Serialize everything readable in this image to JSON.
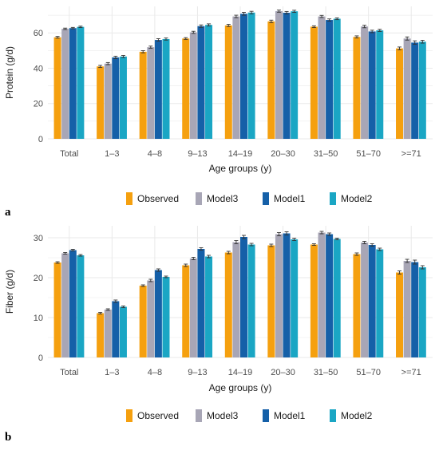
{
  "colors": {
    "Observed": "#f5a00f",
    "Model3": "#a8a6b6",
    "Model1": "#1560a8",
    "Model2": "#1aa6c4",
    "grid": "#e9e9e9",
    "error_bar": "#333333"
  },
  "chart_data": [
    {
      "type": "bar",
      "panel_label": "a",
      "xlabel": "Age groups (y)",
      "ylabel": "Protein (g/d)",
      "ylim": [
        0,
        75
      ],
      "yticks": [
        0,
        20,
        40,
        60
      ],
      "grid": true,
      "legend_position": "bottom",
      "categories": [
        "Total",
        "1–3",
        "4–8",
        "9–13",
        "14–19",
        "20–30",
        "31–50",
        "51–70",
        ">=71"
      ],
      "series": [
        {
          "name": "Observed",
          "values": [
            57.5,
            41.0,
            49.3,
            56.8,
            64.2,
            66.5,
            63.5,
            57.7,
            51.2
          ],
          "errors": [
            0.5,
            0.6,
            0.6,
            0.5,
            0.6,
            0.7,
            0.5,
            0.6,
            0.8
          ]
        },
        {
          "name": "Model3",
          "values": [
            62.3,
            42.6,
            51.9,
            60.3,
            69.3,
            72.3,
            69.3,
            63.6,
            56.8
          ],
          "errors": [
            0.4,
            0.6,
            0.6,
            0.6,
            0.7,
            0.6,
            0.6,
            0.7,
            0.9
          ]
        },
        {
          "name": "Model1",
          "values": [
            62.7,
            46.1,
            56.0,
            63.8,
            70.8,
            71.4,
            67.3,
            60.8,
            54.5
          ],
          "errors": [
            0.4,
            0.7,
            0.7,
            0.7,
            0.8,
            0.7,
            0.6,
            0.7,
            1.0
          ]
        },
        {
          "name": "Model2",
          "values": [
            63.4,
            46.6,
            56.5,
            64.5,
            71.5,
            72.2,
            68.0,
            61.4,
            55.0
          ],
          "errors": [
            0.4,
            0.6,
            0.6,
            0.6,
            0.7,
            0.6,
            0.5,
            0.6,
            0.8
          ]
        }
      ]
    },
    {
      "type": "bar",
      "panel_label": "b",
      "xlabel": "Age groups (y)",
      "ylabel": "Fiber (g/d)",
      "ylim": [
        0,
        33
      ],
      "yticks": [
        0,
        10,
        20,
        30
      ],
      "grid": true,
      "legend_position": "bottom",
      "categories": [
        "Total",
        "1–3",
        "4–8",
        "9–13",
        "14–19",
        "20–30",
        "31–50",
        "51–70",
        ">=71"
      ],
      "series": [
        {
          "name": "Observed",
          "values": [
            23.8,
            11.1,
            18.0,
            23.1,
            26.3,
            28.1,
            28.3,
            25.9,
            21.3
          ],
          "errors": [
            0.2,
            0.2,
            0.2,
            0.3,
            0.3,
            0.3,
            0.2,
            0.3,
            0.4
          ]
        },
        {
          "name": "Model3",
          "values": [
            26.1,
            12.0,
            19.3,
            24.8,
            28.9,
            30.9,
            31.3,
            28.8,
            24.2
          ],
          "errors": [
            0.2,
            0.2,
            0.3,
            0.3,
            0.4,
            0.4,
            0.3,
            0.3,
            0.4
          ]
        },
        {
          "name": "Model1",
          "values": [
            26.9,
            14.1,
            21.9,
            27.2,
            30.2,
            31.1,
            30.9,
            28.2,
            23.9
          ],
          "errors": [
            0.2,
            0.3,
            0.3,
            0.3,
            0.4,
            0.4,
            0.3,
            0.3,
            0.5
          ]
        },
        {
          "name": "Model2",
          "values": [
            25.6,
            12.7,
            20.2,
            25.3,
            28.3,
            29.6,
            29.7,
            27.1,
            22.6
          ],
          "errors": [
            0.2,
            0.2,
            0.2,
            0.3,
            0.3,
            0.3,
            0.2,
            0.3,
            0.4
          ]
        }
      ]
    }
  ]
}
